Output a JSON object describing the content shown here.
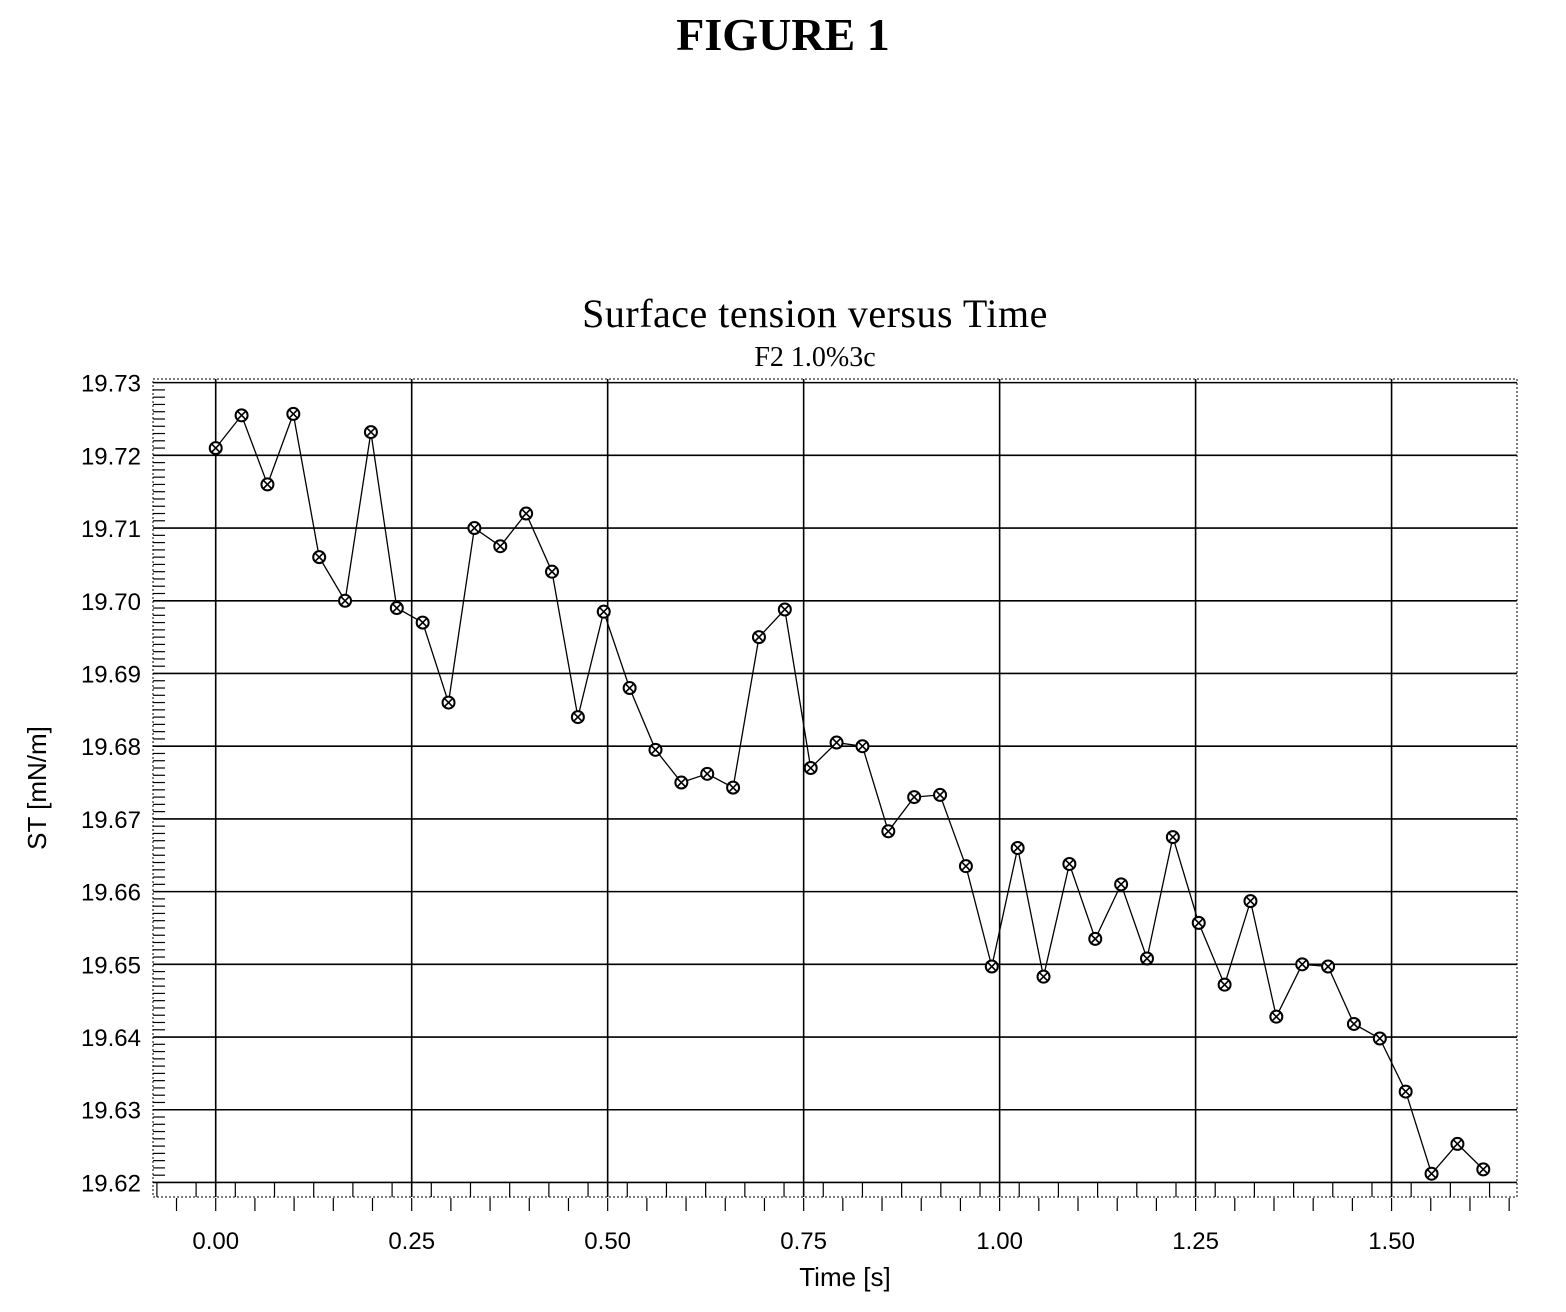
{
  "figure_title": "FIGURE 1",
  "chart_data": {
    "type": "line",
    "title": "Surface tension versus Time",
    "subtitle": "F2 1.0%3c",
    "xlabel": "Time [s]",
    "ylabel": "ST [mN/m]",
    "xlim": [
      -0.08,
      1.66
    ],
    "ylim": [
      19.618,
      19.7305
    ],
    "x_ticks": [
      0.0,
      0.25,
      0.5,
      0.75,
      1.0,
      1.25,
      1.5
    ],
    "x_tick_labels": [
      "0.00",
      "0.25",
      "0.50",
      "0.75",
      "1.00",
      "1.25",
      "1.50"
    ],
    "y_ticks": [
      19.62,
      19.63,
      19.64,
      19.65,
      19.66,
      19.67,
      19.68,
      19.69,
      19.7,
      19.71,
      19.72,
      19.73
    ],
    "y_tick_labels": [
      "19.62",
      "19.63",
      "19.64",
      "19.65",
      "19.66",
      "19.67",
      "19.68",
      "19.69",
      "19.70",
      "19.71",
      "19.72",
      "19.73"
    ],
    "grid": true,
    "marker": "circle-x",
    "series": [
      {
        "x": [
          0.0,
          0.033,
          0.066,
          0.099,
          0.132,
          0.165,
          0.198,
          0.231,
          0.264,
          0.297,
          0.33,
          0.363,
          0.396,
          0.429,
          0.462,
          0.495,
          0.528,
          0.561,
          0.594,
          0.627,
          0.66,
          0.693,
          0.726,
          0.759,
          0.792,
          0.825,
          0.858,
          0.891,
          0.924,
          0.957,
          0.99,
          1.023,
          1.056,
          1.089,
          1.122,
          1.155,
          1.188,
          1.221,
          1.254,
          1.287,
          1.32,
          1.353,
          1.386,
          1.419,
          1.452,
          1.485,
          1.518,
          1.551,
          1.584,
          1.617
        ],
        "y": [
          19.721,
          19.7255,
          19.716,
          19.7257,
          19.706,
          19.7,
          19.7232,
          19.699,
          19.697,
          19.686,
          19.71,
          19.7075,
          19.712,
          19.704,
          19.684,
          19.6985,
          19.688,
          19.6795,
          19.675,
          19.6762,
          19.6743,
          19.695,
          19.6988,
          19.677,
          19.6805,
          19.68,
          19.6683,
          19.673,
          19.6733,
          19.6635,
          19.6497,
          19.666,
          19.6483,
          19.6638,
          19.6535,
          19.661,
          19.6508,
          19.6675,
          19.6557,
          19.6472,
          19.6587,
          19.6428,
          19.65,
          19.6497,
          19.6418,
          19.6398,
          19.6325,
          19.6212,
          19.6253,
          19.6218
        ]
      }
    ]
  }
}
